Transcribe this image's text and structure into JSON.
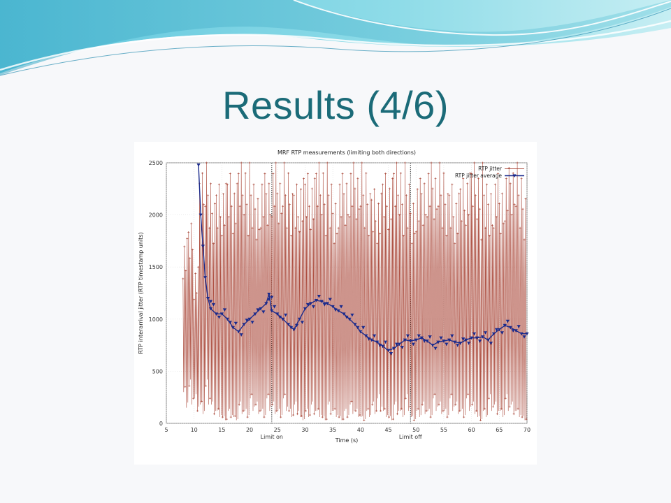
{
  "slide": {
    "title": "Results (4/6)"
  },
  "colors": {
    "title": "#1b6b78",
    "jitter": "#a33a2a",
    "average": "#1a2a8c"
  },
  "chart_data": {
    "type": "line",
    "title": "MRF RTP measurements (limiting both directions)",
    "xlabel": "Time (s)",
    "ylabel": "RTP interarrival jitter (RTP timestamp units)",
    "xlim": [
      5,
      70
    ],
    "ylim": [
      0,
      2500
    ],
    "x_ticks": [
      5,
      10,
      15,
      20,
      25,
      30,
      35,
      40,
      45,
      50,
      55,
      60,
      65,
      70
    ],
    "y_ticks": [
      0,
      500,
      1000,
      1500,
      2000,
      2500
    ],
    "grid": true,
    "legend_position": "top-right",
    "markers": [
      {
        "x": 24,
        "label": "Limit on"
      },
      {
        "x": 49,
        "label": "Limit off"
      }
    ],
    "series": [
      {
        "name": "RTP jitter",
        "marker": "plus",
        "x": [
          8,
          9,
          10,
          11,
          12,
          13,
          14,
          15,
          16,
          17,
          18,
          19,
          20,
          21,
          22,
          23,
          24,
          25,
          26,
          27,
          28,
          29,
          30,
          31,
          32,
          33,
          34,
          35,
          36,
          37,
          38,
          39,
          40,
          41,
          42,
          43,
          44,
          45,
          46,
          47,
          48,
          49,
          50,
          51,
          52,
          53,
          54,
          55,
          56,
          57,
          58,
          59,
          60,
          61,
          62,
          63,
          64,
          65,
          66,
          67,
          68,
          69,
          70
        ],
        "y_low": [
          250,
          300,
          200,
          150,
          300,
          150,
          100,
          50,
          100,
          50,
          150,
          100,
          200,
          150,
          100,
          200,
          150,
          100,
          200,
          100,
          150,
          50,
          100,
          150,
          100,
          50,
          150,
          100,
          50,
          100,
          150,
          100,
          50,
          100,
          150,
          200,
          100,
          50,
          150,
          100,
          200,
          50,
          100,
          150,
          100,
          200,
          150,
          100,
          200,
          150,
          100,
          200,
          150,
          50,
          100,
          200,
          150,
          100,
          200,
          150,
          100,
          50,
          100
        ],
        "y_high": [
          1850,
          2000,
          1500,
          2400,
          2500,
          2300,
          2500,
          2400,
          2500,
          2300,
          2500,
          2400,
          2500,
          2350,
          2500,
          2400,
          2500,
          2300,
          2500,
          2400,
          2500,
          2450,
          2500,
          2350,
          2500,
          2400,
          2500,
          2300,
          2500,
          2400,
          2500,
          2350,
          2500,
          2400,
          2450,
          2300,
          2500,
          2350,
          2500,
          2400,
          2500,
          2300,
          2450,
          2400,
          2500,
          2350,
          2500,
          2400,
          2500,
          2300,
          2450,
          2400,
          2500,
          2350,
          2500,
          2400,
          2500,
          2300,
          2450,
          2400,
          2500,
          2350,
          2450
        ]
      },
      {
        "name": "RTP jitter average",
        "marker": "triangle-down",
        "x": [
          10.8,
          11.2,
          11.6,
          12,
          12.5,
          13,
          14,
          15,
          16,
          17,
          18,
          19,
          20,
          21,
          22,
          23,
          23.5,
          24,
          25,
          26,
          27,
          28,
          29,
          30,
          31,
          32,
          33,
          34,
          35,
          36,
          37,
          38,
          39,
          40,
          41,
          42,
          43,
          44,
          45,
          46,
          47,
          48,
          49,
          50,
          51,
          52,
          53,
          54,
          55,
          56,
          57,
          58,
          59,
          60,
          61,
          62,
          63,
          64,
          65,
          66,
          67,
          68,
          69,
          70
        ],
        "y": [
          2480,
          2000,
          1700,
          1400,
          1200,
          1100,
          1050,
          1050,
          1000,
          920,
          880,
          950,
          1000,
          1050,
          1100,
          1150,
          1240,
          1080,
          1050,
          1000,
          950,
          900,
          1000,
          1100,
          1150,
          1180,
          1170,
          1150,
          1120,
          1080,
          1050,
          1000,
          950,
          880,
          840,
          800,
          780,
          740,
          700,
          720,
          760,
          800,
          790,
          800,
          820,
          790,
          750,
          780,
          790,
          800,
          780,
          770,
          800,
          820,
          820,
          830,
          800,
          860,
          900,
          940,
          920,
          890,
          860,
          860
        ]
      }
    ]
  }
}
